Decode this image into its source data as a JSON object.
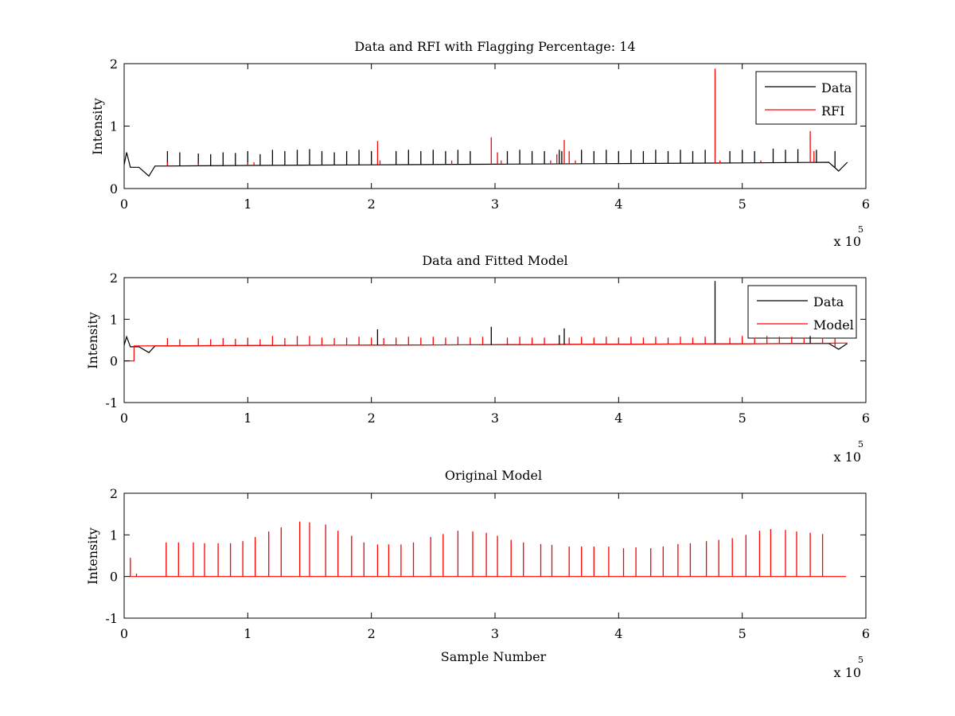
{
  "chart_data": [
    {
      "type": "line",
      "title": "Data and RFI with Flagging Percentage: 14",
      "xlabel": "",
      "ylabel": "Intensity",
      "xlim": [
        0,
        6
      ],
      "ylim": [
        0,
        2
      ],
      "xticks": [
        0,
        1,
        2,
        3,
        4,
        5,
        6
      ],
      "yticks": [
        0,
        1,
        2
      ],
      "x_multiplier": "x 10",
      "x_multiplier_exp": "5",
      "legend_position": "top-right",
      "grid": false,
      "baseline": {
        "x": [
          0,
          0.02,
          0.05,
          0.12,
          0.2,
          0.25,
          0.35,
          1.0,
          2.0,
          3.0,
          4.0,
          5.0,
          5.7,
          5.78,
          5.85
        ],
        "y": [
          0.38,
          0.58,
          0.34,
          0.34,
          0.2,
          0.36,
          0.36,
          0.37,
          0.38,
          0.39,
          0.4,
          0.41,
          0.42,
          0.28,
          0.42
        ]
      },
      "series": [
        {
          "name": "Data",
          "color": "#000000",
          "spikes": [
            [
              0.35,
              0.6
            ],
            [
              0.45,
              0.58
            ],
            [
              0.6,
              0.56
            ],
            [
              0.7,
              0.55
            ],
            [
              0.8,
              0.58
            ],
            [
              0.9,
              0.57
            ],
            [
              1.0,
              0.6
            ],
            [
              1.1,
              0.55
            ],
            [
              1.2,
              0.62
            ],
            [
              1.3,
              0.6
            ],
            [
              1.4,
              0.62
            ],
            [
              1.5,
              0.63
            ],
            [
              1.6,
              0.6
            ],
            [
              1.7,
              0.58
            ],
            [
              1.8,
              0.6
            ],
            [
              1.9,
              0.62
            ],
            [
              2.0,
              0.6
            ],
            [
              2.2,
              0.6
            ],
            [
              2.3,
              0.62
            ],
            [
              2.4,
              0.6
            ],
            [
              2.5,
              0.62
            ],
            [
              2.6,
              0.6
            ],
            [
              2.7,
              0.62
            ],
            [
              2.8,
              0.6
            ],
            [
              3.1,
              0.6
            ],
            [
              3.2,
              0.62
            ],
            [
              3.3,
              0.6
            ],
            [
              3.4,
              0.6
            ],
            [
              3.52,
              0.62
            ],
            [
              3.54,
              0.6
            ],
            [
              3.7,
              0.62
            ],
            [
              3.8,
              0.6
            ],
            [
              3.9,
              0.62
            ],
            [
              4.0,
              0.6
            ],
            [
              4.1,
              0.62
            ],
            [
              4.2,
              0.6
            ],
            [
              4.3,
              0.62
            ],
            [
              4.4,
              0.6
            ],
            [
              4.5,
              0.62
            ],
            [
              4.6,
              0.6
            ],
            [
              4.7,
              0.62
            ],
            [
              4.9,
              0.6
            ],
            [
              5.0,
              0.62
            ],
            [
              5.1,
              0.6
            ],
            [
              5.25,
              0.64
            ],
            [
              5.35,
              0.62
            ],
            [
              5.45,
              0.63
            ],
            [
              5.6,
              0.62
            ],
            [
              5.75,
              0.6
            ]
          ]
        },
        {
          "name": "RFI",
          "color": "#ff0000",
          "spikes": [
            [
              0.35,
              0.42
            ],
            [
              0.6,
              0.4
            ],
            [
              1.0,
              0.42
            ],
            [
              1.05,
              0.42
            ],
            [
              2.05,
              0.76
            ],
            [
              2.07,
              0.45
            ],
            [
              2.65,
              0.45
            ],
            [
              2.97,
              0.82
            ],
            [
              3.02,
              0.58
            ],
            [
              3.05,
              0.45
            ],
            [
              3.45,
              0.45
            ],
            [
              3.5,
              0.55
            ],
            [
              3.56,
              0.78
            ],
            [
              3.6,
              0.6
            ],
            [
              3.65,
              0.45
            ],
            [
              4.78,
              1.92
            ],
            [
              4.82,
              0.45
            ],
            [
              5.15,
              0.45
            ],
            [
              5.55,
              0.92
            ],
            [
              5.58,
              0.6
            ]
          ]
        }
      ]
    },
    {
      "type": "line",
      "title": "Data and Fitted Model",
      "xlabel": "",
      "ylabel": "Intensity",
      "xlim": [
        0,
        6
      ],
      "ylim": [
        -1,
        2
      ],
      "xticks": [
        0,
        1,
        2,
        3,
        4,
        5,
        6
      ],
      "yticks": [
        -1,
        0,
        1,
        2
      ],
      "x_multiplier": "x 10",
      "x_multiplier_exp": "5",
      "legend_position": "top-right",
      "grid": false,
      "baseline": {
        "x": [
          0,
          0.02,
          0.05,
          0.12,
          0.2,
          0.25,
          0.35,
          1.0,
          2.0,
          3.0,
          4.0,
          5.0,
          5.7,
          5.78,
          5.85
        ],
        "y": [
          0.38,
          0.58,
          0.34,
          0.34,
          0.2,
          0.36,
          0.36,
          0.37,
          0.38,
          0.39,
          0.4,
          0.41,
          0.42,
          0.28,
          0.42
        ]
      },
      "model_baseline": {
        "x": [
          0,
          0.08,
          0.08,
          0.1,
          0.1,
          1.0,
          2.0,
          3.0,
          4.0,
          5.0,
          5.85
        ],
        "y": [
          0.0,
          0.0,
          0.36,
          0.36,
          0.36,
          0.37,
          0.38,
          0.39,
          0.4,
          0.41,
          0.43
        ]
      },
      "series": [
        {
          "name": "Data",
          "color": "#000000",
          "spikes": [
            [
              2.05,
              0.76
            ],
            [
              2.97,
              0.82
            ],
            [
              3.52,
              0.62
            ],
            [
              3.56,
              0.78
            ],
            [
              4.78,
              1.92
            ],
            [
              5.55,
              0.6
            ]
          ]
        },
        {
          "name": "Model",
          "color": "#ff0000",
          "spikes": [
            [
              0.35,
              0.55
            ],
            [
              0.45,
              0.52
            ],
            [
              0.6,
              0.55
            ],
            [
              0.7,
              0.52
            ],
            [
              0.8,
              0.55
            ],
            [
              0.9,
              0.53
            ],
            [
              1.0,
              0.56
            ],
            [
              1.1,
              0.52
            ],
            [
              1.2,
              0.6
            ],
            [
              1.3,
              0.55
            ],
            [
              1.4,
              0.6
            ],
            [
              1.5,
              0.6
            ],
            [
              1.6,
              0.56
            ],
            [
              1.7,
              0.55
            ],
            [
              1.8,
              0.56
            ],
            [
              1.9,
              0.58
            ],
            [
              2.0,
              0.56
            ],
            [
              2.1,
              0.55
            ],
            [
              2.2,
              0.56
            ],
            [
              2.3,
              0.58
            ],
            [
              2.4,
              0.56
            ],
            [
              2.5,
              0.58
            ],
            [
              2.6,
              0.56
            ],
            [
              2.7,
              0.58
            ],
            [
              2.8,
              0.56
            ],
            [
              2.9,
              0.58
            ],
            [
              3.1,
              0.56
            ],
            [
              3.2,
              0.58
            ],
            [
              3.3,
              0.56
            ],
            [
              3.4,
              0.56
            ],
            [
              3.6,
              0.56
            ],
            [
              3.7,
              0.58
            ],
            [
              3.8,
              0.56
            ],
            [
              3.9,
              0.58
            ],
            [
              4.0,
              0.56
            ],
            [
              4.1,
              0.58
            ],
            [
              4.2,
              0.56
            ],
            [
              4.3,
              0.58
            ],
            [
              4.4,
              0.56
            ],
            [
              4.5,
              0.58
            ],
            [
              4.6,
              0.56
            ],
            [
              4.7,
              0.58
            ],
            [
              4.9,
              0.56
            ],
            [
              5.0,
              0.6
            ],
            [
              5.1,
              0.56
            ],
            [
              5.2,
              0.6
            ],
            [
              5.3,
              0.58
            ],
            [
              5.4,
              0.58
            ],
            [
              5.5,
              0.56
            ],
            [
              5.65,
              0.56
            ],
            [
              5.75,
              0.55
            ]
          ]
        }
      ]
    },
    {
      "type": "line",
      "title": "Original Model",
      "xlabel": "Sample Number",
      "ylabel": "Intensity",
      "xlim": [
        0,
        6
      ],
      "ylim": [
        -1,
        2
      ],
      "xticks": [
        0,
        1,
        2,
        3,
        4,
        5,
        6
      ],
      "yticks": [
        -1,
        0,
        1,
        2
      ],
      "x_multiplier": "x 10",
      "x_multiplier_exp": "5",
      "grid": false,
      "baseline": {
        "x": [
          0.04,
          5.84
        ],
        "y": [
          0.0,
          0.0
        ]
      },
      "series": [
        {
          "name": "",
          "color": "#ff0000",
          "spikes": [
            [
              0.05,
              0.45
            ],
            [
              0.1,
              0.07
            ],
            [
              0.34,
              0.82
            ],
            [
              0.44,
              0.82
            ],
            [
              0.56,
              0.82
            ],
            [
              0.65,
              0.8
            ],
            [
              0.76,
              0.8
            ],
            [
              0.86,
              0.8
            ],
            [
              0.96,
              0.85
            ],
            [
              1.06,
              0.95
            ],
            [
              1.17,
              1.08
            ],
            [
              1.27,
              1.18
            ],
            [
              1.42,
              1.32
            ],
            [
              1.5,
              1.3
            ],
            [
              1.63,
              1.25
            ],
            [
              1.73,
              1.1
            ],
            [
              1.84,
              0.98
            ],
            [
              1.94,
              0.82
            ],
            [
              2.05,
              0.77
            ],
            [
              2.14,
              0.77
            ],
            [
              2.24,
              0.77
            ],
            [
              2.34,
              0.82
            ],
            [
              2.48,
              0.95
            ],
            [
              2.58,
              1.02
            ],
            [
              2.7,
              1.1
            ],
            [
              2.82,
              1.08
            ],
            [
              2.93,
              1.05
            ],
            [
              3.02,
              0.98
            ],
            [
              3.13,
              0.88
            ],
            [
              3.23,
              0.82
            ],
            [
              3.37,
              0.78
            ],
            [
              3.46,
              0.76
            ],
            [
              3.6,
              0.72
            ],
            [
              3.7,
              0.72
            ],
            [
              3.8,
              0.72
            ],
            [
              3.92,
              0.72
            ],
            [
              4.04,
              0.68
            ],
            [
              4.14,
              0.7
            ],
            [
              4.26,
              0.68
            ],
            [
              4.36,
              0.72
            ],
            [
              4.48,
              0.78
            ],
            [
              4.58,
              0.8
            ],
            [
              4.71,
              0.85
            ],
            [
              4.81,
              0.88
            ],
            [
              4.92,
              0.92
            ],
            [
              5.03,
              1.0
            ],
            [
              5.14,
              1.1
            ],
            [
              5.23,
              1.14
            ],
            [
              5.35,
              1.12
            ],
            [
              5.44,
              1.08
            ],
            [
              5.55,
              1.05
            ],
            [
              5.65,
              1.02
            ]
          ]
        }
      ]
    }
  ]
}
